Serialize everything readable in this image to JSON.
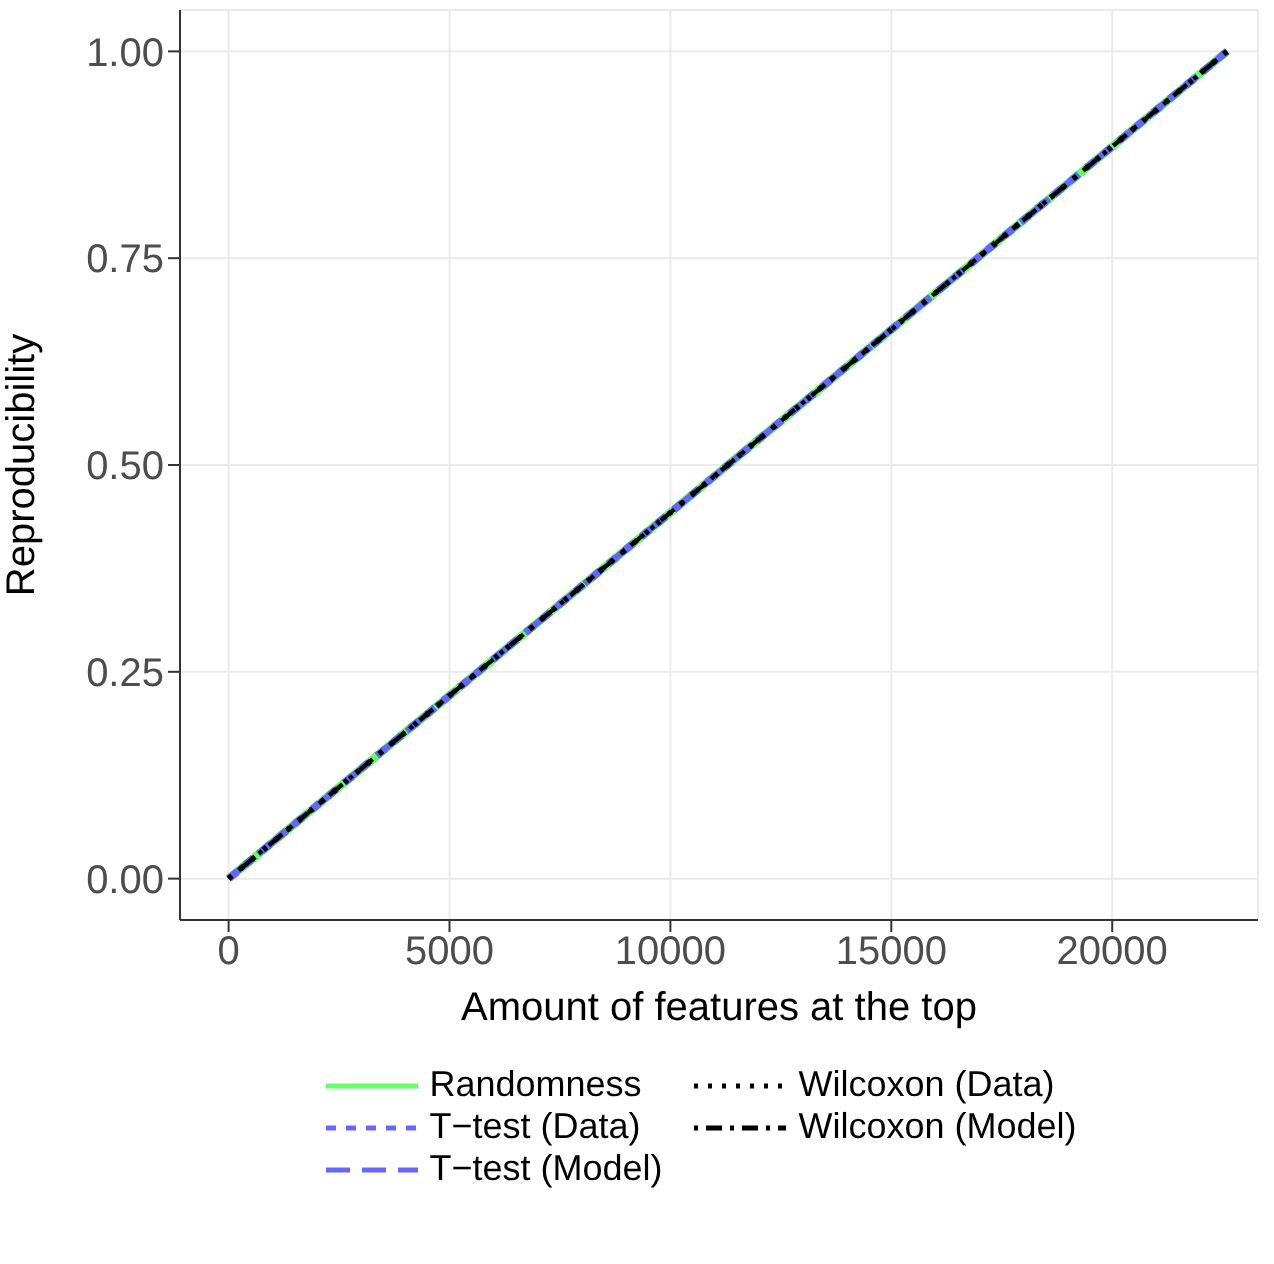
{
  "chart_data": {
    "type": "line",
    "xlabel": "Amount of features at the top",
    "ylabel": "Reproducibility",
    "x": [
      0,
      22600
    ],
    "series": [
      {
        "name": "Randomness",
        "color": "#66ff66",
        "values": [
          0,
          1
        ],
        "line_style": "solid"
      },
      {
        "name": "T−test (Data)",
        "color": "#6666ff",
        "values": [
          0,
          1
        ],
        "line_style": "dashed"
      },
      {
        "name": "T−test (Model)",
        "color": "#6666ff",
        "values": [
          0,
          1
        ],
        "line_style": "longdash"
      },
      {
        "name": "Wilcoxon (Data)",
        "color": "#000000",
        "values": [
          0,
          1
        ],
        "line_style": "dotted"
      },
      {
        "name": "Wilcoxon (Model)",
        "color": "#000000",
        "values": [
          0,
          1
        ],
        "line_style": "dashdot"
      }
    ],
    "xlim": [
      -1100,
      23300
    ],
    "xticks": [
      0,
      5000,
      10000,
      15000,
      20000
    ],
    "ylim": [
      -0.05,
      1.05
    ],
    "yticks": [
      {
        "value": 0,
        "label": "0.00"
      },
      {
        "value": 0.25,
        "label": "0.25"
      },
      {
        "value": 0.5,
        "label": "0.50"
      },
      {
        "value": 0.75,
        "label": "0.75"
      },
      {
        "value": 1,
        "label": "1.00"
      }
    ],
    "grid": true,
    "legend": "bottom",
    "marker": "none"
  }
}
